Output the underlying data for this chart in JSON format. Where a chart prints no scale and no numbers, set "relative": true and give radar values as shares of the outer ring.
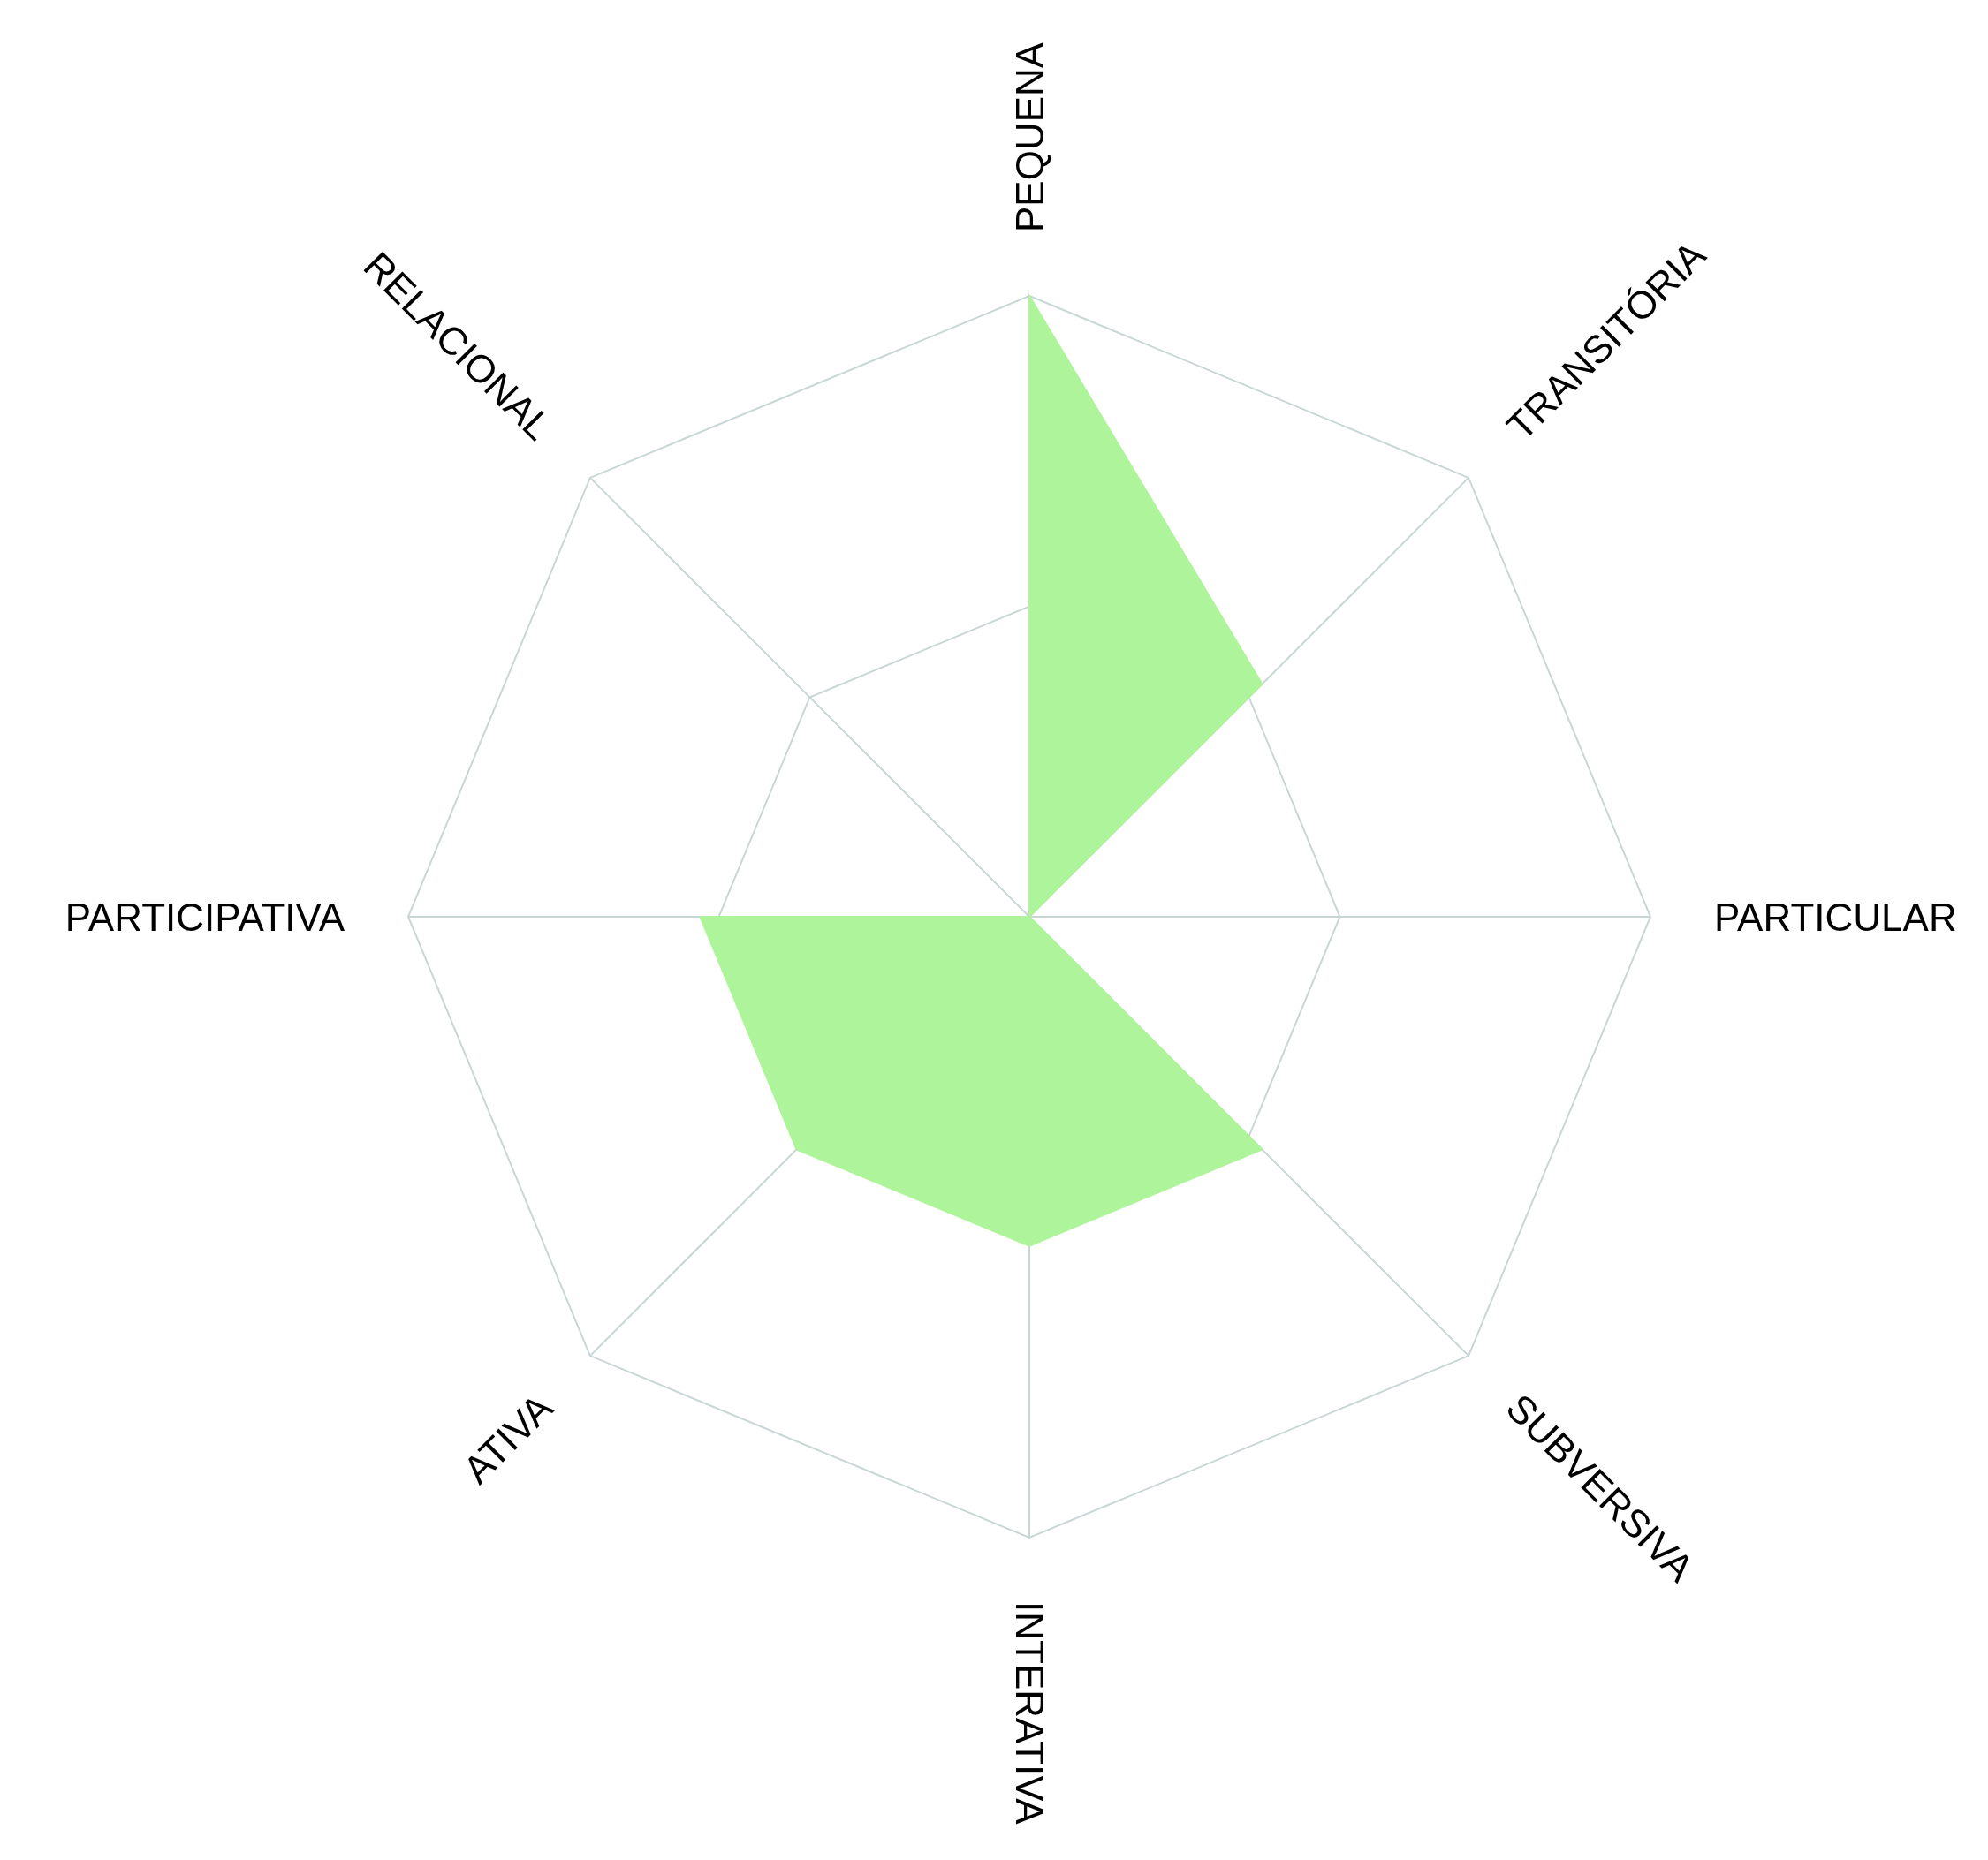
{
  "chart_data": {
    "type": "radar",
    "relative": true,
    "grid": true,
    "categories": [
      "PEQUENA",
      "TRANSITÓRIA",
      "PARTICULAR",
      "SUBVERSIVA",
      "INTERATIVA",
      "ATIVA",
      "PARTICIPATIVA",
      "RELACIONAL"
    ],
    "series": [
      {
        "color": "#aef49a",
        "values": [
          1,
          0.53,
          0,
          0.53,
          0.53,
          0.53,
          0.53,
          0
        ]
      }
    ]
  }
}
